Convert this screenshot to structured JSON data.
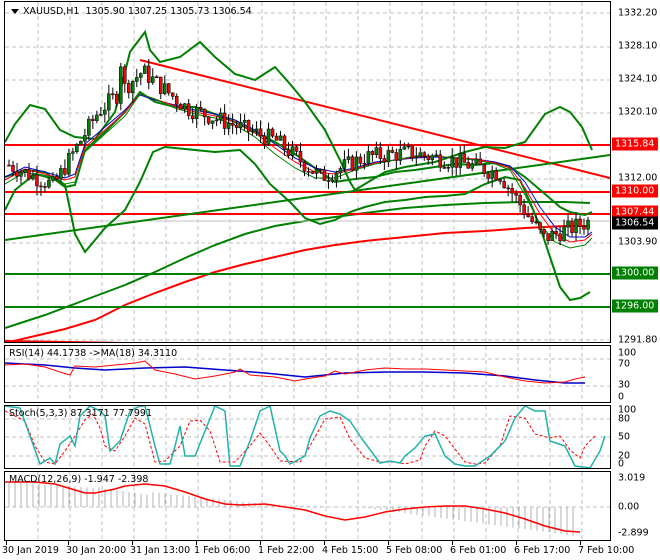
{
  "header": {
    "symbol": "XAUUSD,H1",
    "ohlc": "1305.90 1307.25 1305.73 1306.54"
  },
  "price_axis": {
    "ticks": [
      "1332.20",
      "1328.10",
      "1324.10",
      "1320.10",
      "1312.00",
      "1303.90",
      "1291.80"
    ],
    "tags": [
      {
        "label": "1315.84",
        "color": "#ff0000"
      },
      {
        "label": "1310.00",
        "color": "#ff0000"
      },
      {
        "label": "1307.44",
        "color": "#ff0000"
      },
      {
        "label": "1306.54",
        "color": "#000000"
      },
      {
        "label": "1300.00",
        "color": "#008000"
      },
      {
        "label": "1296.00",
        "color": "#008000"
      }
    ]
  },
  "rsi": {
    "label": "RSI(14) 44.1738  ->MA(18) 34.3110",
    "ticks": [
      "100",
      "70",
      "30",
      "0"
    ]
  },
  "stoch": {
    "label": "Stoch(5,3,3) 87.3171 77.7991",
    "ticks": [
      "100",
      "80",
      "50",
      "20",
      "0"
    ]
  },
  "macd": {
    "label": "MACD(12,26,9) -1.947 -2.398",
    "ticks": [
      "3.019",
      "0.00",
      "-2.899"
    ]
  },
  "time_axis": {
    "labels": [
      "30 Jan 2019",
      "30 Jan 20:00",
      "31 Jan 13:00",
      "1 Feb 06:00",
      "1 Feb 22:00",
      "4 Feb 15:00",
      "5 Feb 08:00",
      "6 Feb 01:00",
      "6 Feb 17:00",
      "7 Feb 10:00"
    ]
  },
  "chart_data": [
    {
      "type": "candlestick",
      "title": "XAUUSD,H1",
      "ohlc_last": {
        "open": 1305.9,
        "high": 1307.25,
        "low": 1305.73,
        "close": 1306.54
      },
      "ylim": [
        1291.8,
        1333.5
      ],
      "x": [
        "30 Jan 2019",
        "30 Jan 20:00",
        "31 Jan 13:00",
        "1 Feb 06:00",
        "1 Feb 22:00",
        "4 Feb 15:00",
        "5 Feb 08:00",
        "6 Feb 01:00",
        "6 Feb 17:00",
        "7 Feb 10:00"
      ],
      "approx_close_path": [
        1313.5,
        1311.0,
        1320.0,
        1325.0,
        1320.5,
        1318.5,
        1316.5,
        1312.0,
        1314.5,
        1315.0,
        1314.0,
        1312.5,
        1304.5,
        1306.54
      ],
      "horizontal_levels": [
        {
          "price": 1315.84,
          "color": "#ff0000"
        },
        {
          "price": 1310.0,
          "color": "#ff0000"
        },
        {
          "price": 1307.44,
          "color": "#ff0000"
        },
        {
          "price": 1300.0,
          "color": "#008000"
        },
        {
          "price": 1296.0,
          "color": "#008000"
        }
      ],
      "trendlines": [
        {
          "name": "descending resistance",
          "color": "#ff0000",
          "from": [
            "31 Jan 13:00",
            1326.5
          ],
          "to": [
            "7 Feb 10:00",
            1312.5
          ]
        },
        {
          "name": "ascending support",
          "color": "#008000",
          "from": [
            "30 Jan 2019",
            1304.5
          ],
          "to": [
            "7 Feb 10:00",
            1315.0
          ]
        }
      ],
      "overlays": [
        "Bollinger Bands (green)",
        "Fast MAs (blue/red/green)",
        "Long MA green",
        "Long MA red"
      ]
    },
    {
      "type": "line",
      "title": "RSI(14) 44.1738 ->MA(18) 34.3110",
      "ylim": [
        0,
        100
      ],
      "series": [
        {
          "name": "RSI(14)",
          "color": "#ff0000",
          "last": 44.1738
        },
        {
          "name": "MA(18)",
          "color": "#0000cc",
          "last": 34.311
        }
      ]
    },
    {
      "type": "line",
      "title": "Stoch(5,3,3) 87.3171 77.7991",
      "ylim": [
        0,
        100
      ],
      "series": [
        {
          "name": "%K",
          "color": "#20b2aa",
          "last": 87.3171
        },
        {
          "name": "%D",
          "color": "#ff0000",
          "last": 77.7991
        }
      ]
    },
    {
      "type": "bar",
      "title": "MACD(12,26,9) -1.947 -2.398",
      "ylim": [
        -2.899,
        3.019
      ],
      "series": [
        {
          "name": "MACD histogram",
          "color": "#c0c0c0",
          "last": -1.947
        },
        {
          "name": "Signal",
          "color": "#ff0000",
          "last": -2.398
        }
      ]
    }
  ]
}
